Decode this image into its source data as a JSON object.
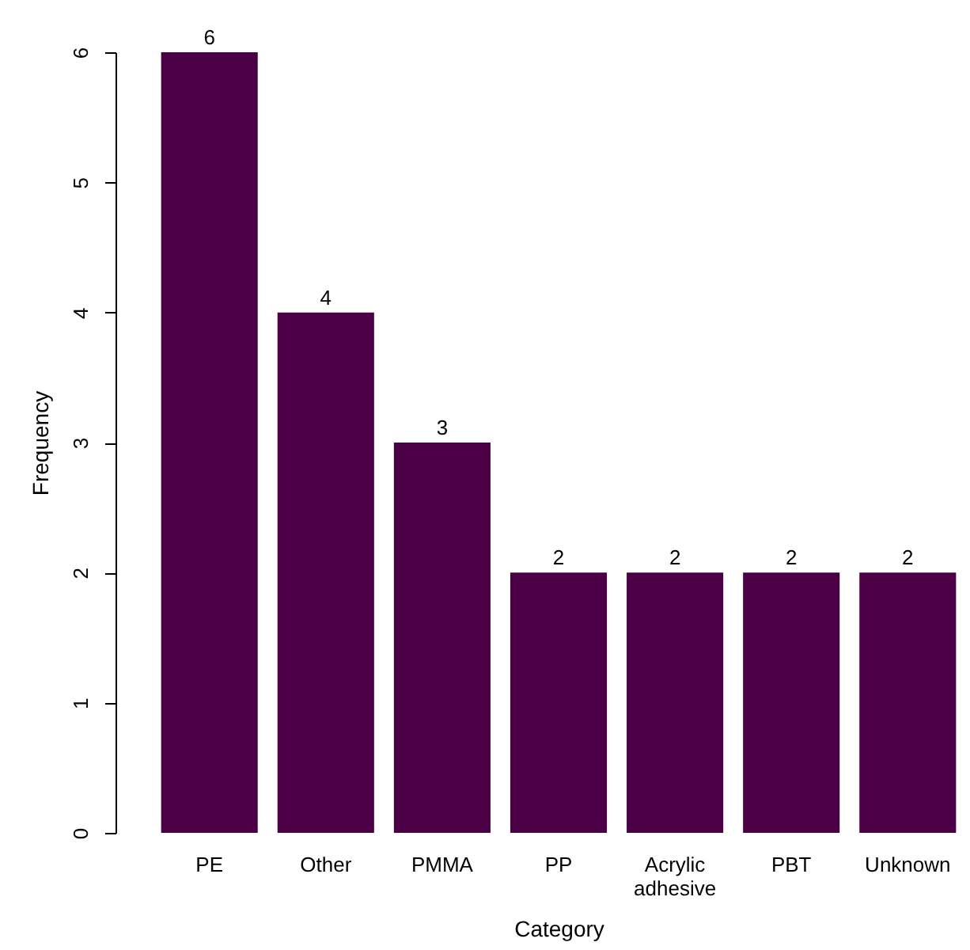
{
  "chart_data": {
    "type": "bar",
    "xlabel": "Category",
    "ylabel": "Frequency",
    "categories": [
      "PE",
      "Other",
      "PMMA",
      "PP",
      "Acrylic adhesive",
      "PBT",
      "Unknown"
    ],
    "values": [
      6,
      4,
      3,
      2,
      2,
      2,
      2
    ],
    "color": "#4b0045",
    "ylim": [
      0,
      6
    ],
    "yticks": [
      0,
      1,
      2,
      3,
      4,
      5,
      6
    ],
    "grid": false,
    "data_labels": true
  }
}
